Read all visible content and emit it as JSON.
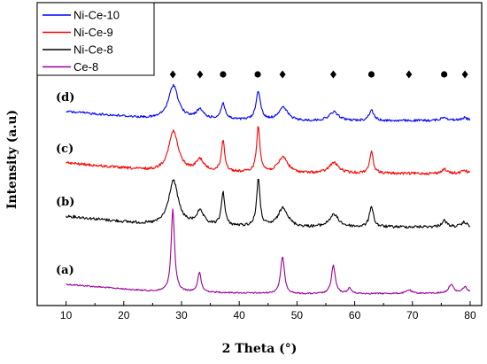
{
  "chart_data": {
    "type": "line",
    "xlabel": "2 Theta (°)",
    "ylabel": "Intensity (a.u)",
    "xlim": [
      5,
      82
    ],
    "xticks": [
      10,
      20,
      30,
      40,
      50,
      60,
      70,
      80
    ],
    "yticks_shown": false,
    "legend": {
      "position": "top-left",
      "entries": [
        {
          "name": "Ni-Ce-10",
          "color": "#0000ff"
        },
        {
          "name": "Ni-Ce-9",
          "color": "#ff0000"
        },
        {
          "name": "Ni-Ce-8",
          "color": "#000000"
        },
        {
          "name": "Ce-8",
          "color": "#990099"
        }
      ]
    },
    "peak_markers": [
      {
        "x": 28.5,
        "symbol": "diamond"
      },
      {
        "x": 33.2,
        "symbol": "diamond"
      },
      {
        "x": 37.2,
        "symbol": "circle"
      },
      {
        "x": 43.2,
        "symbol": "circle"
      },
      {
        "x": 47.5,
        "symbol": "diamond"
      },
      {
        "x": 56.3,
        "symbol": "diamond"
      },
      {
        "x": 62.9,
        "symbol": "circle"
      },
      {
        "x": 69.4,
        "symbol": "diamond"
      },
      {
        "x": 75.5,
        "symbol": "circle"
      },
      {
        "x": 79.1,
        "symbol": "diamond"
      }
    ],
    "series": [
      {
        "name": "Ni-Ce-10",
        "label": "(d)",
        "color": "#0000ff",
        "baseline": [
          [
            10,
            126
          ],
          [
            25,
            134
          ],
          [
            50,
            137
          ],
          [
            80,
            136
          ]
        ],
        "peaks": [
          [
            28.6,
            38,
            1.0
          ],
          [
            33.2,
            10,
            0.8
          ],
          [
            37.2,
            18,
            0.45
          ],
          [
            43.3,
            33,
            0.45
          ],
          [
            47.6,
            15,
            1.0
          ],
          [
            56.4,
            10,
            1.0
          ],
          [
            62.9,
            12,
            0.5
          ],
          [
            75.5,
            4,
            0.6
          ],
          [
            79.0,
            3,
            0.6
          ]
        ],
        "noise": 1.3
      },
      {
        "name": "Ni-Ce-9",
        "label": "(c)",
        "color": "#ff0000",
        "baseline": [
          [
            10,
            184
          ],
          [
            25,
            193
          ],
          [
            50,
            196
          ],
          [
            80,
            196
          ]
        ],
        "peaks": [
          [
            28.6,
            45,
            1.0
          ],
          [
            33.2,
            13,
            0.8
          ],
          [
            37.2,
            35,
            0.35
          ],
          [
            43.3,
            52,
            0.35
          ],
          [
            47.6,
            18,
            1.0
          ],
          [
            56.4,
            12,
            1.0
          ],
          [
            62.9,
            24,
            0.4
          ],
          [
            75.5,
            5,
            0.5
          ],
          [
            79.0,
            4,
            0.5
          ]
        ],
        "noise": 1.5
      },
      {
        "name": "Ni-Ce-8",
        "label": "(b)",
        "color": "#000000",
        "baseline": [
          [
            10,
            244
          ],
          [
            25,
            254
          ],
          [
            50,
            257
          ],
          [
            80,
            256
          ]
        ],
        "peaks": [
          [
            28.6,
            50,
            1.0
          ],
          [
            33.2,
            15,
            0.8
          ],
          [
            37.2,
            38,
            0.35
          ],
          [
            43.3,
            53,
            0.35
          ],
          [
            47.6,
            22,
            1.0
          ],
          [
            56.4,
            14,
            1.0
          ],
          [
            62.9,
            24,
            0.4
          ],
          [
            75.5,
            7,
            0.5
          ],
          [
            79.0,
            5,
            0.5
          ]
        ],
        "noise": 1.6
      },
      {
        "name": "Ce-8",
        "label": "(a)",
        "color": "#990099",
        "baseline": [
          [
            10,
            321
          ],
          [
            25,
            329
          ],
          [
            50,
            332
          ],
          [
            80,
            331
          ]
        ],
        "peaks": [
          [
            28.5,
            93,
            0.35
          ],
          [
            33.1,
            22,
            0.35
          ],
          [
            47.5,
            42,
            0.4
          ],
          [
            56.3,
            32,
            0.4
          ],
          [
            59.1,
            6,
            0.4
          ],
          [
            69.4,
            4,
            0.5
          ],
          [
            76.7,
            10,
            0.5
          ],
          [
            79.1,
            7,
            0.5
          ]
        ],
        "noise": 0.8
      }
    ]
  }
}
